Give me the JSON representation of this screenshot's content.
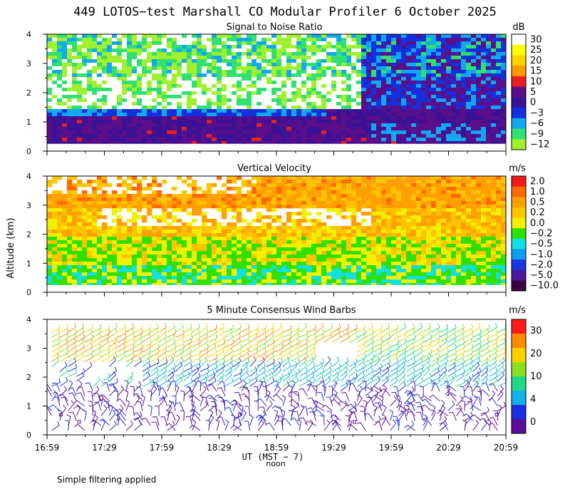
{
  "title": "449 LOTOS−test Marshall CO Modular Profiler  6 October 2025",
  "y_axis_label": "Altitude (km)",
  "x_axis": {
    "ticks": [
      "16:59",
      "17:29",
      "17:59",
      "18:29",
      "18:59",
      "19:29",
      "19:59",
      "20:29",
      "20:59"
    ],
    "label": "UT  (MST − 7)",
    "noon_label": "noon"
  },
  "footnote": "Simple filtering applied",
  "chart_data": [
    {
      "type": "heatmap",
      "title": "Signal to Noise Ratio",
      "ylim": [
        0,
        4
      ],
      "y_ticks": [
        "0",
        "1",
        "2",
        "3",
        "4"
      ],
      "colorbar": {
        "unit": "dB",
        "labels": [
          "30",
          "25",
          "20",
          "15",
          "10",
          "5",
          "0",
          "−3",
          "−6",
          "−9",
          "−12"
        ],
        "colors": [
          "#ffffff",
          "#ffff00",
          "#ffd200",
          "#ff9a00",
          "#e62020",
          "#5a0e8a",
          "#3a1296",
          "#1430dc",
          "#10a8f0",
          "#30e070",
          "#a0f030"
        ]
      },
      "layers": [
        {
          "alt_range": [
            0.25,
            1.3
          ],
          "value": "0 to 5 dB"
        },
        {
          "alt_range": [
            1.3,
            2.6
          ],
          "value": "10 to 30 dB"
        },
        {
          "alt_range": [
            2.6,
            4.0
          ],
          "value": "−12 to 0 dB"
        }
      ]
    },
    {
      "type": "heatmap",
      "title": "Vertical Velocity",
      "ylim": [
        0,
        4
      ],
      "y_ticks": [
        "0",
        "1",
        "2",
        "3",
        "4"
      ],
      "colorbar": {
        "unit": "m/s",
        "labels": [
          "2.0",
          "1.0",
          "0.5",
          "0.2",
          "0.0",
          "−0.2",
          "−0.5",
          "−1.0",
          "−2.0",
          "−5.0",
          "−10.0"
        ],
        "colors": [
          "#f01818",
          "#ff6a00",
          "#ffa000",
          "#ffc400",
          "#f0f000",
          "#30e000",
          "#10e0e0",
          "#109cf0",
          "#1838d8",
          "#4a1aa0",
          "#3a0040"
        ]
      },
      "layers": [
        {
          "alt_range": [
            0.25,
            2.0
          ],
          "value": "−0.5 to 0.5 m/s"
        },
        {
          "alt_range": [
            2.0,
            4.0
          ],
          "value": "0.2 to 1.0 m/s"
        }
      ]
    },
    {
      "type": "scatter",
      "title": "5 Minute Consensus Wind Barbs",
      "ylim": [
        0,
        4
      ],
      "y_ticks": [
        "0",
        "1",
        "2",
        "3",
        "4"
      ],
      "colorbar": {
        "unit": "m/s",
        "labels": [
          "30",
          "20",
          "10",
          "4",
          "0"
        ],
        "colors": [
          "#ff1a1a",
          "#ff8c00",
          "#ffd000",
          "#88e020",
          "#20d888",
          "#10b0e8",
          "#1a30e0",
          "#5a0e9a"
        ]
      },
      "wind_layers": [
        {
          "alt_range": [
            0.1,
            1.6
          ],
          "speed": "0 to 4 m/s"
        },
        {
          "alt_range": [
            1.6,
            2.5
          ],
          "speed": "4 to 10 m/s"
        },
        {
          "alt_range": [
            2.5,
            3.7
          ],
          "speed": "10 to 20 m/s"
        }
      ]
    }
  ]
}
